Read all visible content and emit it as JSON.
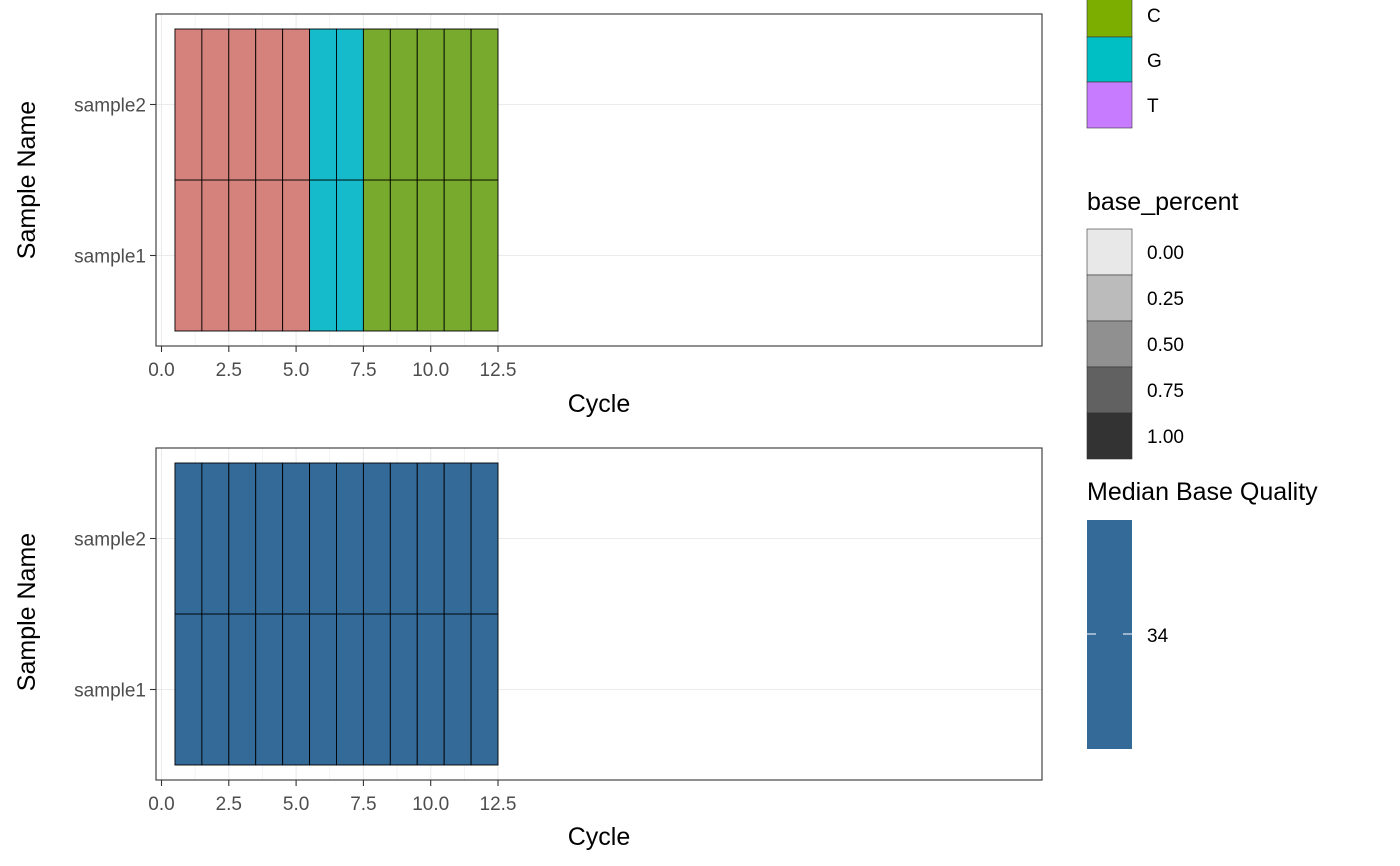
{
  "chart_data": [
    {
      "type": "heatmap",
      "title": "",
      "xlabel": "Cycle",
      "ylabel": "Sample Name",
      "xlim": [
        0,
        12.5
      ],
      "x_ticks": [
        "0.0",
        "2.5",
        "5.0",
        "7.5",
        "10.0",
        "12.5"
      ],
      "x_tick_values": [
        0,
        2.5,
        5,
        7.5,
        10,
        12.5
      ],
      "y_categories": [
        "sample1",
        "sample2"
      ],
      "x": [
        1,
        2,
        3,
        4,
        5,
        6,
        7,
        8,
        9,
        10,
        11,
        12
      ],
      "fill_variable": "base",
      "alpha_variable": "base_percent",
      "rows": [
        {
          "sample": "sample1",
          "base": [
            "A",
            "A",
            "A",
            "A",
            "A",
            "G",
            "G",
            "C",
            "C",
            "C",
            "C",
            "C"
          ],
          "base_percent": [
            1,
            1,
            1,
            1,
            1,
            1,
            1,
            1,
            1,
            1,
            1,
            1
          ]
        },
        {
          "sample": "sample2",
          "base": [
            "A",
            "A",
            "A",
            "A",
            "A",
            "G",
            "G",
            "C",
            "C",
            "C",
            "C",
            "C"
          ],
          "base_percent": [
            1,
            1,
            1,
            1,
            1,
            1,
            1,
            1,
            1,
            1,
            1,
            1
          ]
        }
      ],
      "grid": true
    },
    {
      "type": "heatmap",
      "title": "",
      "xlabel": "Cycle",
      "ylabel": "Sample Name",
      "xlim": [
        0,
        12.5
      ],
      "x_ticks": [
        "0.0",
        "2.5",
        "5.0",
        "7.5",
        "10.0",
        "12.5"
      ],
      "x_tick_values": [
        0,
        2.5,
        5,
        7.5,
        10,
        12.5
      ],
      "y_categories": [
        "sample1",
        "sample2"
      ],
      "x": [
        1,
        2,
        3,
        4,
        5,
        6,
        7,
        8,
        9,
        10,
        11,
        12
      ],
      "fill_variable": "Median Base Quality",
      "rows": [
        {
          "sample": "sample1",
          "values": [
            34,
            34,
            34,
            34,
            34,
            34,
            34,
            34,
            34,
            34,
            34,
            34
          ]
        },
        {
          "sample": "sample2",
          "values": [
            34,
            34,
            34,
            34,
            34,
            34,
            34,
            34,
            34,
            34,
            34,
            34
          ]
        }
      ],
      "grid": true
    }
  ],
  "legends": {
    "base": {
      "items": [
        {
          "label": "C",
          "color": "#7CAE00"
        },
        {
          "label": "G",
          "color": "#00BFC4"
        },
        {
          "label": "T",
          "color": "#C77CFF"
        }
      ]
    },
    "base_percent": {
      "title": "base_percent",
      "items": [
        {
          "label": "0.00",
          "color": "#E8E8E8"
        },
        {
          "label": "0.25",
          "color": "#BBBBBB"
        },
        {
          "label": "0.50",
          "color": "#909090"
        },
        {
          "label": "0.75",
          "color": "#616161"
        },
        {
          "label": "1.00",
          "color": "#333333"
        }
      ]
    },
    "quality": {
      "title": "Median Base Quality",
      "tick_label": "34",
      "color": "#336A98"
    }
  },
  "colors": {
    "A": "#D4827B",
    "G": "#15BACB",
    "C": "#78AB2D",
    "quality_fill": "#336A98",
    "grid": "#EBEBEB",
    "panel_border": "#333333"
  }
}
